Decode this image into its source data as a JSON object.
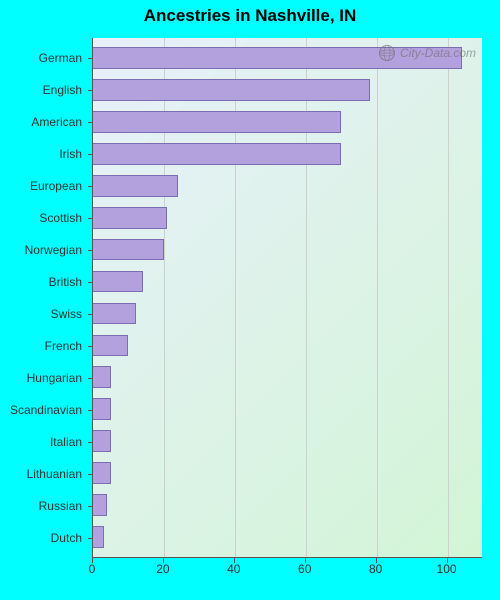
{
  "chart": {
    "type": "bar-horizontal",
    "title": "Ancestries in Nashville, IN",
    "title_fontsize": 17,
    "title_color": "#000000",
    "page_background": "#00ffff",
    "plot_background_gradient": {
      "from": "#e8f0fb",
      "to": "#d2f5d6",
      "angle_deg": 135
    },
    "axis_color": "#555555",
    "gridline_color": "#cfcfcf",
    "bar_color": "#b2a1dc",
    "bar_border_color": "#7a6eb0",
    "label_fontsize": 12,
    "label_color": "#333333",
    "xtick_fontsize": 12,
    "xtick_color": "#333333",
    "x_min": 0,
    "x_max": 110,
    "x_ticks": [
      0,
      20,
      40,
      60,
      80,
      100
    ],
    "categories": [
      "German",
      "English",
      "American",
      "Irish",
      "European",
      "Scottish",
      "Norwegian",
      "British",
      "Swiss",
      "French",
      "Hungarian",
      "Scandinavian",
      "Italian",
      "Lithuanian",
      "Russian",
      "Dutch"
    ],
    "values": [
      104,
      78,
      70,
      70,
      24,
      21,
      20,
      14,
      12,
      10,
      5,
      5,
      5,
      5,
      4,
      3
    ],
    "watermark": {
      "text": "City-Data.com",
      "fontsize": 12,
      "color": "#6d6d6d"
    }
  }
}
